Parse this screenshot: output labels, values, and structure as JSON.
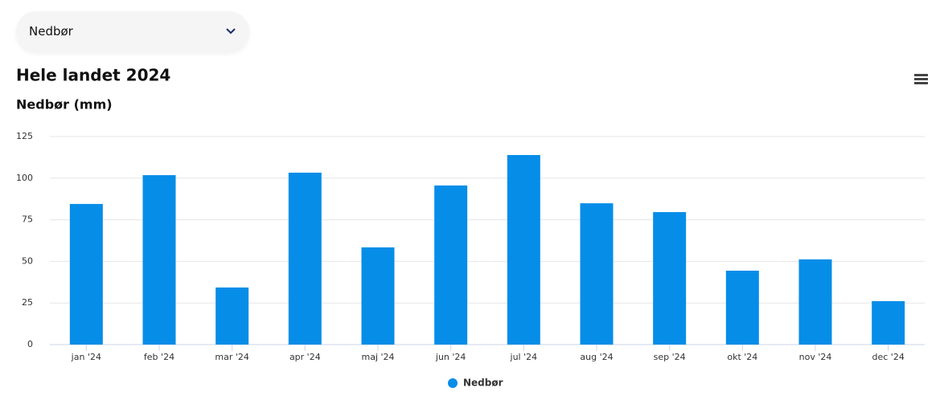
{
  "dropdown": {
    "label": "Nedbør"
  },
  "chart_data": {
    "type": "bar",
    "title": "Hele landet 2024",
    "subtitle": "Nedbør (mm)",
    "categories": [
      "jan '24",
      "feb '24",
      "mar '24",
      "apr '24",
      "maj '24",
      "jun '24",
      "jul '24",
      "aug '24",
      "sep '24",
      "okt '24",
      "nov '24",
      "dec '24"
    ],
    "series": [
      {
        "name": "Nedbør",
        "color": "#068de8",
        "values": [
          84.5,
          101.8,
          34.3,
          103.3,
          58.4,
          95.6,
          113.9,
          84.9,
          79.6,
          44.4,
          51.2,
          26.1
        ]
      }
    ],
    "ylim": [
      0,
      125
    ],
    "yticks": [
      0,
      25,
      50,
      75,
      100,
      125
    ],
    "grid": true
  }
}
